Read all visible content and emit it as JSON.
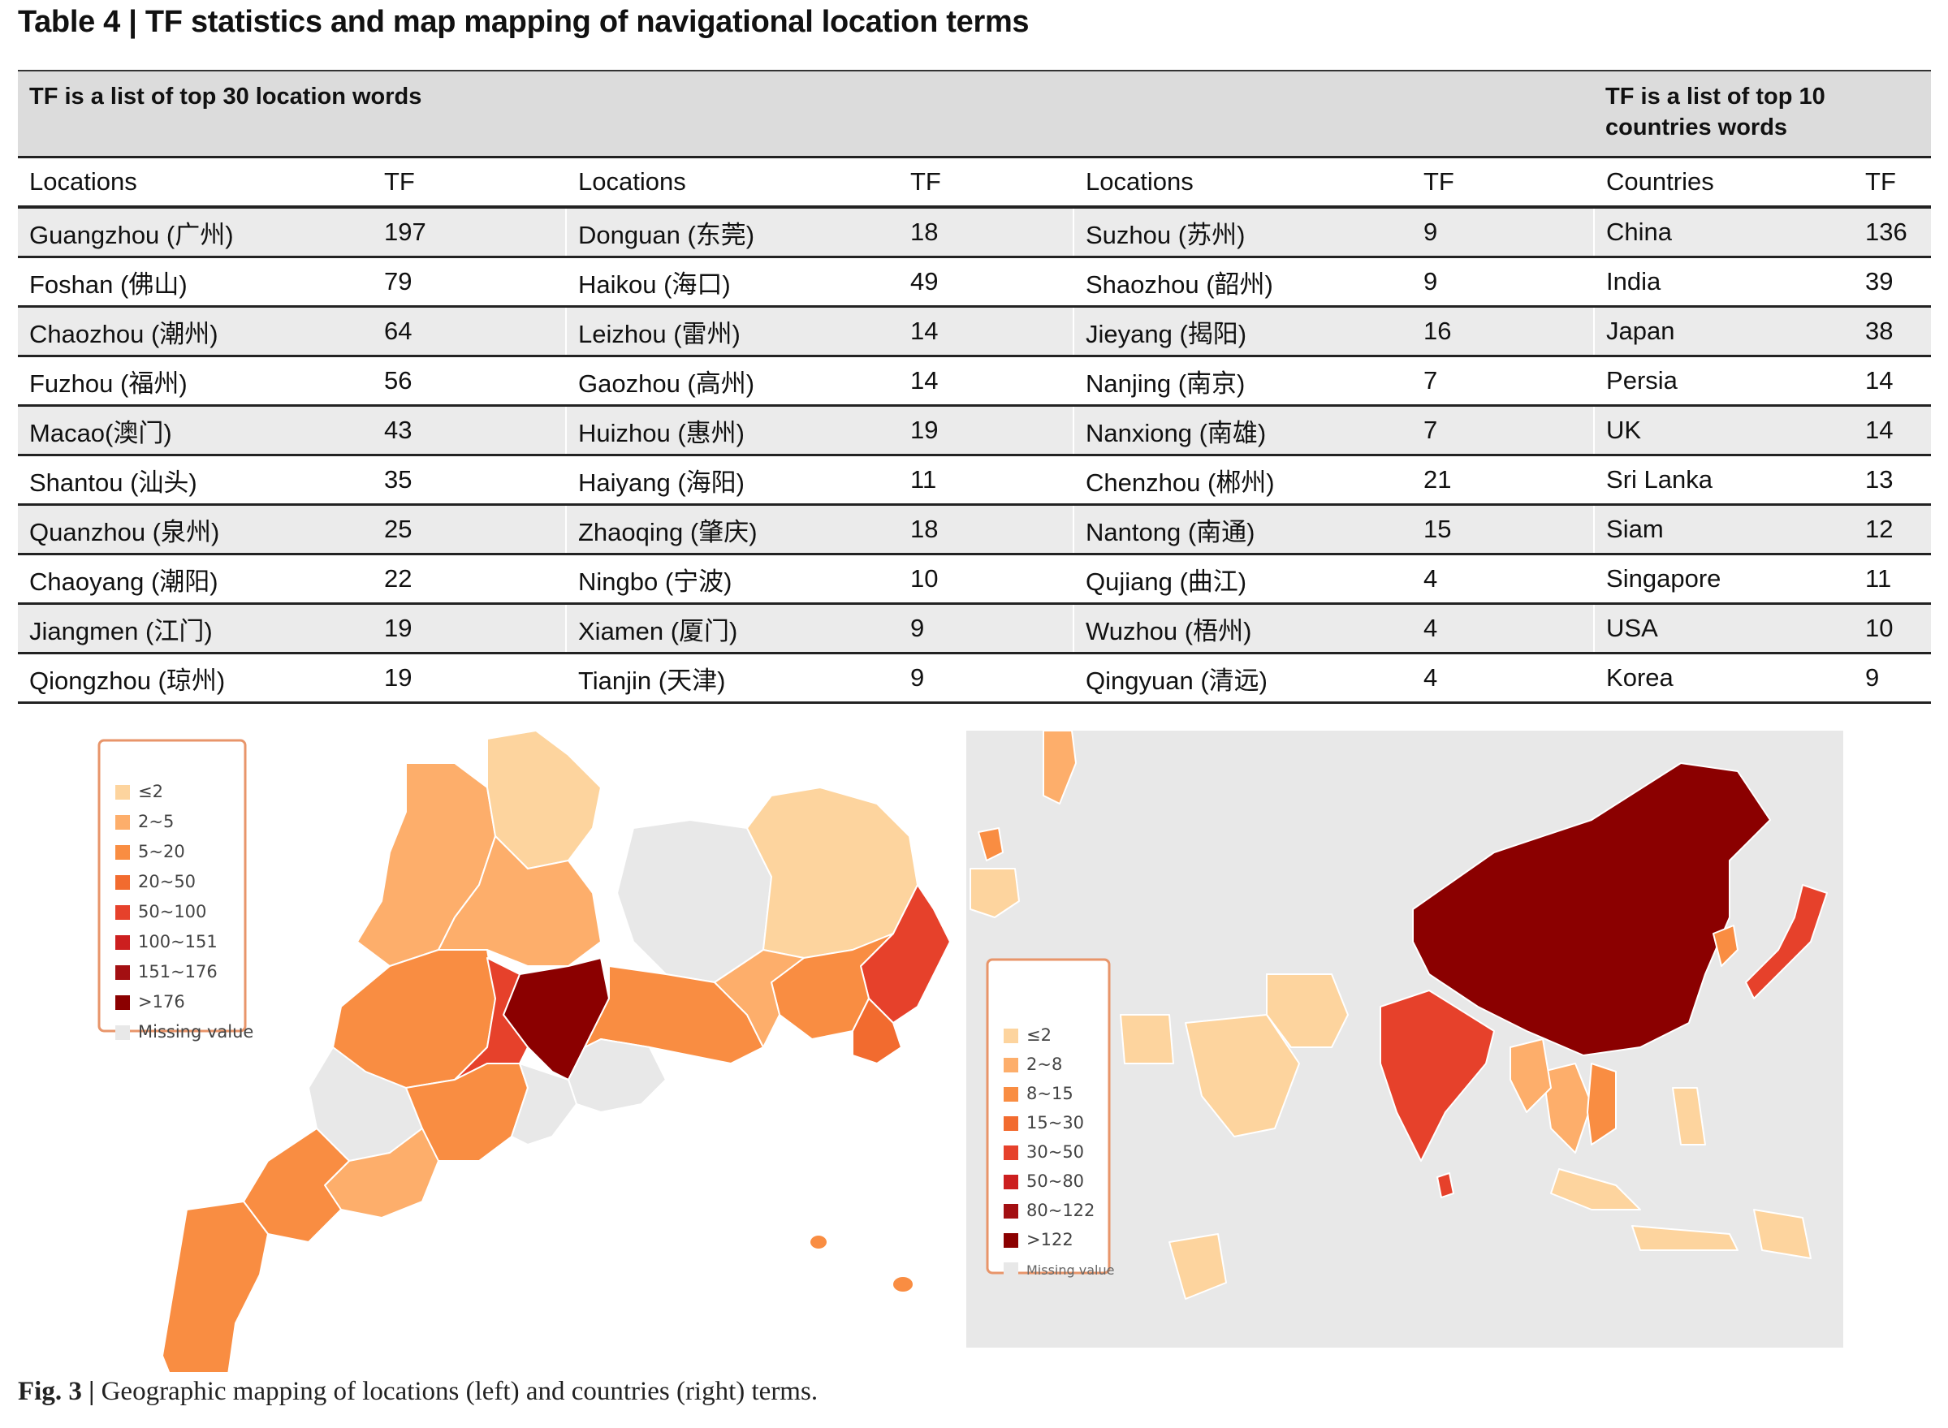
{
  "title": "Table 4 | TF statistics and map mapping of navigational location terms",
  "table": {
    "group_left": "TF is a list of top 30 location words",
    "group_right_line1": "TF is a list of top 10",
    "group_right_line2": "countries words",
    "columns": [
      "Locations",
      "TF",
      "Locations",
      "TF",
      "Locations",
      "TF",
      "Countries",
      "TF"
    ],
    "rows": [
      [
        "Guangzhou (广州)",
        "197",
        "Donguan (东莞)",
        "18",
        "Suzhou (苏州)",
        "9",
        "China",
        "136"
      ],
      [
        "Foshan (佛山)",
        "79",
        "Haikou (海口)",
        "49",
        "Shaozhou (韶州)",
        "9",
        "India",
        "39"
      ],
      [
        "Chaozhou (潮州)",
        "64",
        "Leizhou (雷州)",
        "14",
        "Jieyang (揭阳)",
        "16",
        "Japan",
        "38"
      ],
      [
        "Fuzhou (福州)",
        "56",
        "Gaozhou (高州)",
        "14",
        "Nanjing (南京)",
        "7",
        "Persia",
        "14"
      ],
      [
        "Macao(澳门)",
        "43",
        "Huizhou (惠州)",
        "19",
        "Nanxiong (南雄)",
        "7",
        "UK",
        "14"
      ],
      [
        "Shantou (汕头)",
        "35",
        "Haiyang (海阳)",
        "11",
        "Chenzhou (郴州)",
        "21",
        "Sri Lanka",
        "13"
      ],
      [
        "Quanzhou (泉州)",
        "25",
        "Zhaoqing (肇庆)",
        "18",
        "Nantong (南通)",
        "15",
        "Siam",
        "12"
      ],
      [
        "Chaoyang (潮阳)",
        "22",
        "Ningbo (宁波)",
        "10",
        "Qujiang (曲江)",
        "4",
        "Singapore",
        "11"
      ],
      [
        "Jiangmen (江门)",
        "19",
        "Xiamen (厦门)",
        "9",
        "Wuzhou (梧州)",
        "4",
        "USA",
        "10"
      ],
      [
        "Qiongzhou (琼州)",
        "19",
        "Tianjin (天津)",
        "9",
        "Qingyuan (清远)",
        "4",
        "Korea",
        "9"
      ]
    ]
  },
  "left_legend": {
    "items": [
      {
        "label": "≤2",
        "color": "#fdd49e"
      },
      {
        "label": "2~5",
        "color": "#fdae6b"
      },
      {
        "label": "5~20",
        "color": "#f98d42"
      },
      {
        "label": "20~50",
        "color": "#f26b2f"
      },
      {
        "label": "50~100",
        "color": "#e6412b"
      },
      {
        "label": "100~151",
        "color": "#cc1f1f"
      },
      {
        "label": "151~176",
        "color": "#a30f12"
      },
      {
        "label": ">176",
        "color": "#8b0000"
      }
    ],
    "missing": {
      "label": "Missing value",
      "color": "#e8e8e8"
    }
  },
  "right_legend": {
    "items": [
      {
        "label": "≤2",
        "color": "#fdd49e"
      },
      {
        "label": "2~8",
        "color": "#fdae6b"
      },
      {
        "label": "8~15",
        "color": "#f98d42"
      },
      {
        "label": "15~30",
        "color": "#f26b2f"
      },
      {
        "label": "30~50",
        "color": "#e6412b"
      },
      {
        "label": "50~80",
        "color": "#cc1f1f"
      },
      {
        "label": "80~122",
        "color": "#a30f12"
      },
      {
        "label": ">122",
        "color": "#8b0000"
      }
    ],
    "missing": {
      "label": "Missing value",
      "color": "#e8e8e8"
    }
  },
  "caption": {
    "label": "Fig. 3 |",
    "text": " Geographic mapping of locations (left) and countries (right) terms."
  }
}
